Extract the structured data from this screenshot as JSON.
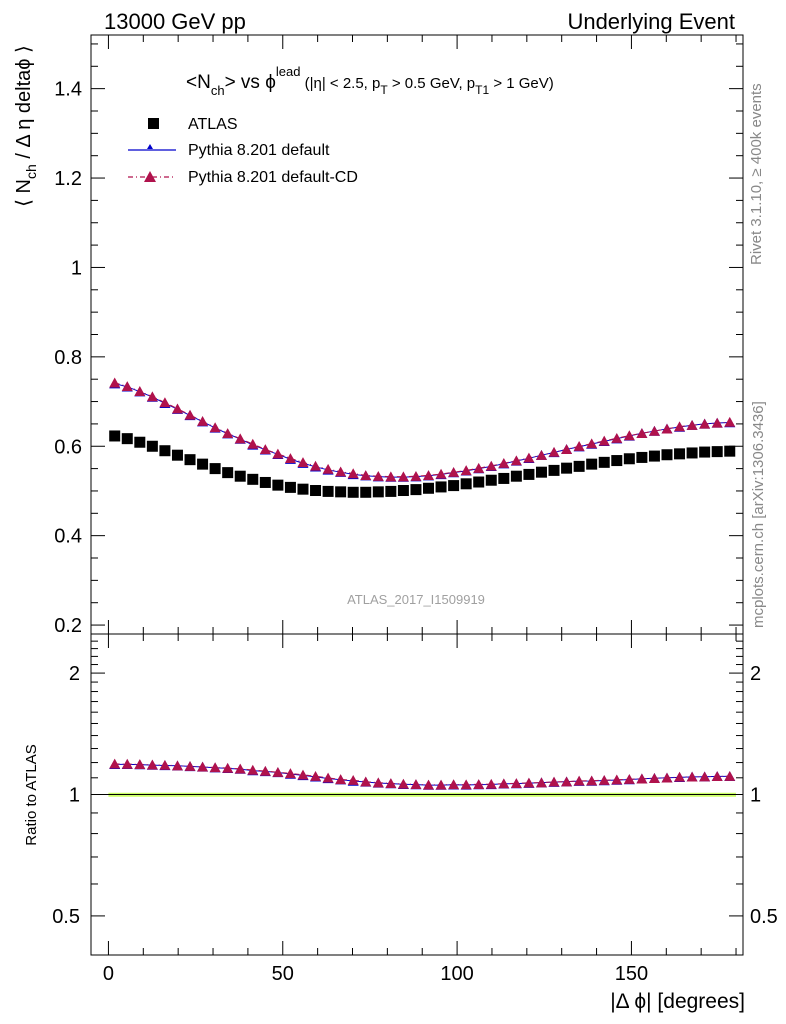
{
  "header": {
    "left": "13000 GeV pp",
    "right": "Underlying Event"
  },
  "side_labels": {
    "rivet": "Rivet 3.1.10, ≥ 400k events",
    "mcplots": "mcplots.cern.ch [arXiv:1306.3436]"
  },
  "chart_data": [
    {
      "type": "scatter",
      "panel": "main",
      "title": "<N_ch> vs φ^lead (|η| < 2.5, p_T > 0.5 GeV, p_T1 > 1 GeV)",
      "title_parts": {
        "main": "<N",
        "sub_ch": "ch",
        "mid": "> vs ϕ",
        "sup": "lead",
        "cut_open": " (|η| < 2.5, p",
        "sub_t": "T",
        "cut_mid": " > 0.5 GeV, p",
        "sub_t1": "T1",
        "cut_end": " > 1 GeV)"
      },
      "ylabel": "⟨ N_ch / Δ η deltaϕ ⟩",
      "ylabel_parts": {
        "open": "⟨ N",
        "sub": "ch",
        "rest": " / Δ η deltaϕ ⟩"
      },
      "xlabel": "|Δ ϕ| [degrees]",
      "xlim": [
        -5,
        182
      ],
      "ylim": [
        0.18,
        1.52
      ],
      "yticks": [
        0.2,
        0.4,
        0.6,
        0.8,
        1,
        1.2,
        1.4
      ],
      "ytick_labels": [
        "0.2",
        "0.4",
        "0.6",
        "0.8",
        "1",
        "1.2",
        "1.4"
      ],
      "watermark": "ATLAS_2017_I1509919",
      "legend_placement": "top-left",
      "x": [
        1.8,
        5.4,
        9.0,
        12.6,
        16.2,
        19.8,
        23.4,
        27.0,
        30.6,
        34.2,
        37.8,
        41.4,
        45.0,
        48.6,
        52.2,
        55.8,
        59.4,
        63.0,
        66.6,
        70.2,
        73.8,
        77.4,
        81.0,
        84.6,
        88.2,
        91.8,
        95.4,
        99.0,
        102.6,
        106.2,
        109.8,
        113.4,
        117.0,
        120.6,
        124.2,
        127.8,
        131.4,
        135.0,
        138.6,
        142.2,
        145.8,
        149.4,
        153.0,
        156.6,
        160.2,
        163.8,
        167.4,
        171.0,
        174.6,
        178.2
      ],
      "series": [
        {
          "name": "ATLAS",
          "color": "#000000",
          "marker": "square",
          "values": [
            0.623,
            0.617,
            0.609,
            0.6,
            0.59,
            0.58,
            0.57,
            0.56,
            0.55,
            0.541,
            0.533,
            0.526,
            0.519,
            0.513,
            0.508,
            0.504,
            0.501,
            0.499,
            0.498,
            0.497,
            0.497,
            0.498,
            0.499,
            0.501,
            0.503,
            0.506,
            0.509,
            0.512,
            0.516,
            0.52,
            0.524,
            0.528,
            0.533,
            0.537,
            0.542,
            0.546,
            0.551,
            0.555,
            0.56,
            0.564,
            0.568,
            0.572,
            0.575,
            0.578,
            0.581,
            0.583,
            0.585,
            0.587,
            0.588,
            0.589
          ]
        },
        {
          "name": "Pythia 8.201 default",
          "color": "#0000cc",
          "marker": "triangle",
          "values": [
            0.74,
            0.733,
            0.722,
            0.71,
            0.696,
            0.683,
            0.669,
            0.655,
            0.641,
            0.628,
            0.616,
            0.603,
            0.592,
            0.582,
            0.571,
            0.562,
            0.554,
            0.547,
            0.542,
            0.537,
            0.534,
            0.532,
            0.531,
            0.531,
            0.532,
            0.534,
            0.537,
            0.541,
            0.545,
            0.55,
            0.555,
            0.561,
            0.567,
            0.573,
            0.58,
            0.586,
            0.593,
            0.599,
            0.605,
            0.611,
            0.617,
            0.623,
            0.629,
            0.634,
            0.639,
            0.643,
            0.647,
            0.65,
            0.652,
            0.653
          ]
        },
        {
          "name": "Pythia 8.201 default-CD",
          "color": "#b0124c",
          "marker": "triangle",
          "values": [
            0.742,
            0.734,
            0.723,
            0.711,
            0.698,
            0.684,
            0.67,
            0.656,
            0.642,
            0.629,
            0.617,
            0.605,
            0.593,
            0.583,
            0.573,
            0.564,
            0.556,
            0.549,
            0.543,
            0.539,
            0.535,
            0.533,
            0.532,
            0.532,
            0.533,
            0.535,
            0.538,
            0.542,
            0.546,
            0.551,
            0.556,
            0.562,
            0.568,
            0.574,
            0.58,
            0.587,
            0.593,
            0.6,
            0.606,
            0.612,
            0.618,
            0.624,
            0.629,
            0.634,
            0.639,
            0.644,
            0.647,
            0.65,
            0.652,
            0.654
          ]
        }
      ]
    },
    {
      "type": "scatter",
      "panel": "ratio",
      "ylabel": "Ratio to ATLAS",
      "xlabel": "|Δ ϕ| [degrees]",
      "xlim": [
        -5,
        182
      ],
      "xticks": [
        0,
        50,
        100,
        150
      ],
      "xtick_labels": [
        "0",
        "50",
        "100",
        "150"
      ],
      "ylim": [
        0.4,
        2.5
      ],
      "yscale": "log",
      "yticks": [
        0.5,
        1,
        2
      ],
      "ytick_labels": [
        "0.5",
        "1",
        "2"
      ],
      "reference_band": {
        "center": 1.0,
        "half_width": 0.01,
        "band_color": "#ccff66",
        "line_color": "#000000"
      },
      "series": [
        {
          "name": "Pythia 8.201 default",
          "color": "#0000cc",
          "marker": "triangle",
          "values": [
            1.188,
            1.188,
            1.186,
            1.183,
            1.18,
            1.178,
            1.174,
            1.17,
            1.165,
            1.161,
            1.156,
            1.146,
            1.141,
            1.134,
            1.124,
            1.115,
            1.106,
            1.096,
            1.088,
            1.08,
            1.074,
            1.068,
            1.064,
            1.06,
            1.058,
            1.055,
            1.055,
            1.057,
            1.056,
            1.058,
            1.059,
            1.063,
            1.064,
            1.067,
            1.07,
            1.073,
            1.076,
            1.079,
            1.08,
            1.083,
            1.086,
            1.089,
            1.094,
            1.097,
            1.1,
            1.103,
            1.106,
            1.107,
            1.109,
            1.109
          ]
        },
        {
          "name": "Pythia 8.201 default-CD",
          "color": "#b0124c",
          "marker": "triangle",
          "values": [
            1.191,
            1.19,
            1.188,
            1.185,
            1.183,
            1.179,
            1.175,
            1.171,
            1.167,
            1.163,
            1.158,
            1.15,
            1.143,
            1.136,
            1.128,
            1.119,
            1.11,
            1.1,
            1.09,
            1.085,
            1.076,
            1.07,
            1.066,
            1.062,
            1.06,
            1.057,
            1.057,
            1.059,
            1.058,
            1.06,
            1.061,
            1.064,
            1.066,
            1.069,
            1.07,
            1.075,
            1.076,
            1.081,
            1.082,
            1.085,
            1.088,
            1.091,
            1.094,
            1.097,
            1.1,
            1.105,
            1.106,
            1.107,
            1.109,
            1.11
          ]
        }
      ]
    }
  ]
}
